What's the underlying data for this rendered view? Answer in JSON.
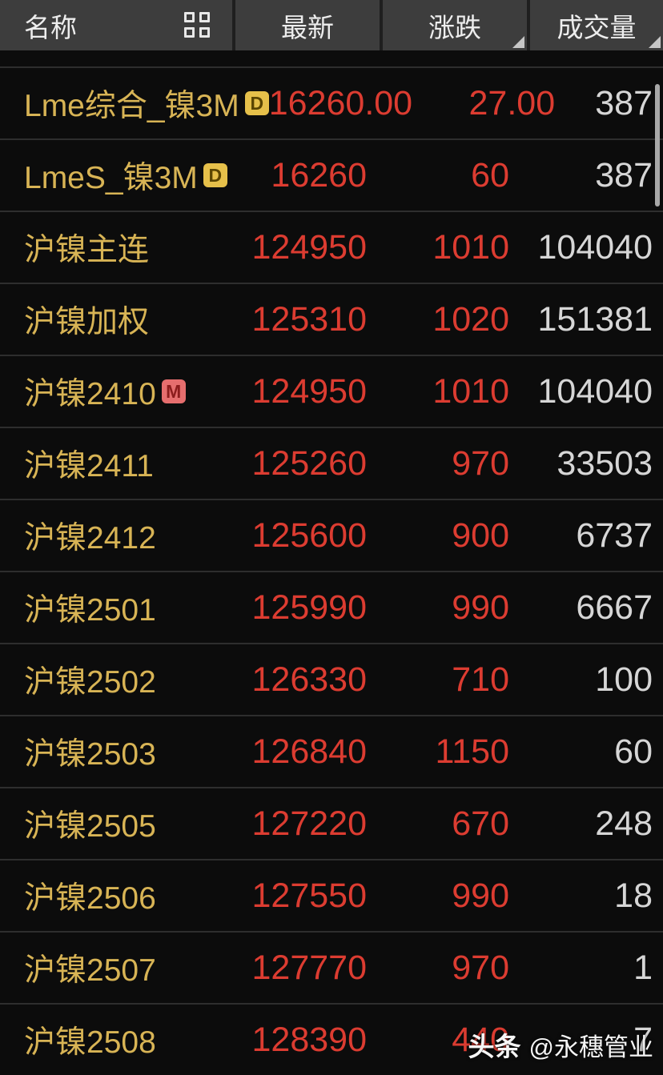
{
  "header": {
    "columns": [
      {
        "label": "名称",
        "sortable": false
      },
      {
        "label": "最新",
        "sortable": false
      },
      {
        "label": "涨跌",
        "sortable": true
      },
      {
        "label": "成交量",
        "sortable": true
      }
    ],
    "grid_icon": "grid-view-icon"
  },
  "table": {
    "rows": [
      {
        "name": "Lme综合_镍3M",
        "badge": "D",
        "last": "16260.00",
        "change": "27.00",
        "volume": "387"
      },
      {
        "name": "LmeS_镍3M",
        "badge": "D",
        "last": "16260",
        "change": "60",
        "volume": "387"
      },
      {
        "name": "沪镍主连",
        "badge": "",
        "last": "124950",
        "change": "1010",
        "volume": "104040"
      },
      {
        "name": "沪镍加权",
        "badge": "",
        "last": "125310",
        "change": "1020",
        "volume": "151381"
      },
      {
        "name": "沪镍2410",
        "badge": "M",
        "last": "124950",
        "change": "1010",
        "volume": "104040"
      },
      {
        "name": "沪镍2411",
        "badge": "",
        "last": "125260",
        "change": "970",
        "volume": "33503"
      },
      {
        "name": "沪镍2412",
        "badge": "",
        "last": "125600",
        "change": "900",
        "volume": "6737"
      },
      {
        "name": "沪镍2501",
        "badge": "",
        "last": "125990",
        "change": "990",
        "volume": "6667"
      },
      {
        "name": "沪镍2502",
        "badge": "",
        "last": "126330",
        "change": "710",
        "volume": "100"
      },
      {
        "name": "沪镍2503",
        "badge": "",
        "last": "126840",
        "change": "1150",
        "volume": "60"
      },
      {
        "name": "沪镍2505",
        "badge": "",
        "last": "127220",
        "change": "670",
        "volume": "248"
      },
      {
        "name": "沪镍2506",
        "badge": "",
        "last": "127550",
        "change": "990",
        "volume": "18"
      },
      {
        "name": "沪镍2507",
        "badge": "",
        "last": "127770",
        "change": "970",
        "volume": "1"
      },
      {
        "name": "沪镍2508",
        "badge": "",
        "last": "128390",
        "change": "440",
        "volume": "7"
      }
    ]
  },
  "watermark": {
    "brand": "头条",
    "handle": "@永穗管业"
  },
  "colors": {
    "header_bg": "#3d3d3d",
    "body_bg": "#0c0c0c",
    "name_gold": "#d8b455",
    "value_red": "#dc3c31",
    "volume_gray": "#d6d6d6",
    "badge_d_bg": "#e6c04a",
    "badge_m_bg": "#e66e6e",
    "separator": "#2e2e2e"
  }
}
